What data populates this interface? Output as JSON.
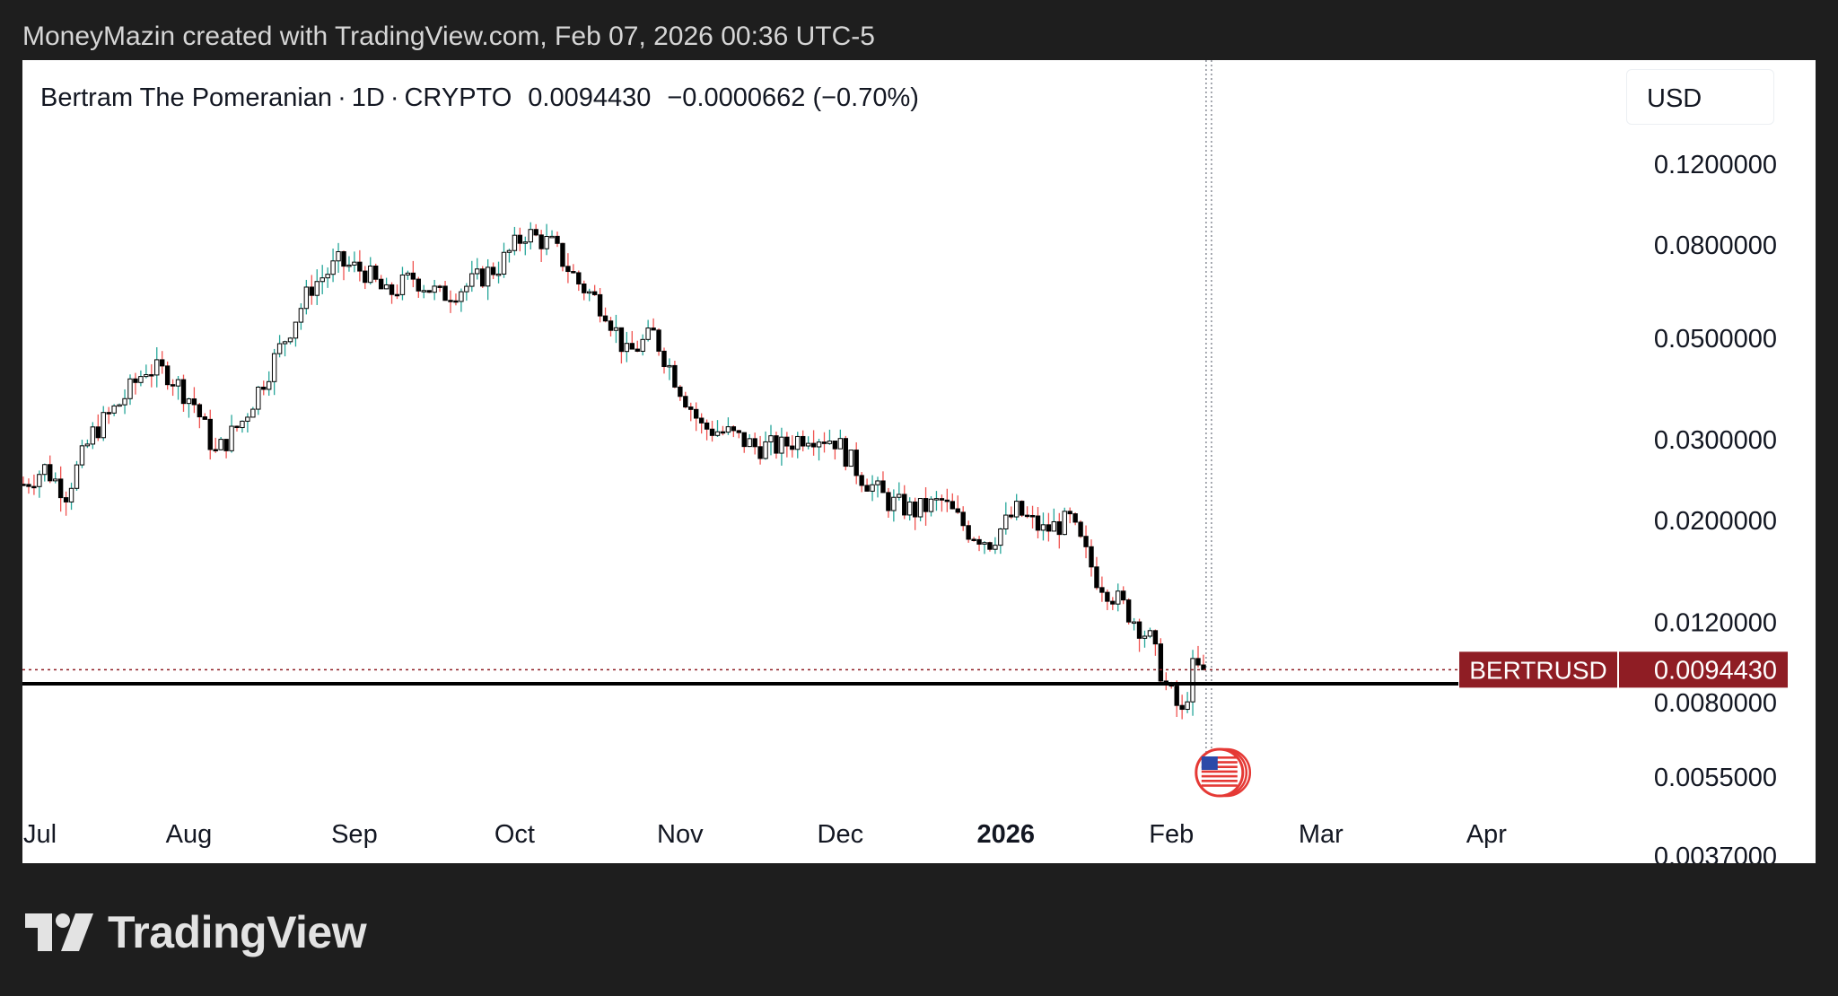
{
  "caption": "MoneyMazin created with TradingView.com, Feb 07, 2026 00:36 UTC-5",
  "currency_button": "USD",
  "legend": {
    "name": "Bertram The Pomeranian",
    "sep1": "·",
    "interval": "1D",
    "sep2": "·",
    "exchange": "CRYPTO",
    "last": "0.0094430",
    "change": "−0.0000662 (−0.70%)"
  },
  "symbol_tag": "BERTRUSD",
  "brand": "TradingView",
  "colors": {
    "up": "#26a69a",
    "down": "#ef5350",
    "candle_body": "#000000",
    "price_tag": "#8f1d24",
    "page_bg": "#1e1e1e",
    "panel_bg": "#ffffff"
  },
  "chart_data": {
    "type": "candlestick",
    "scale": "log",
    "price_axis": [
      "0.1200000",
      "0.0800000",
      "0.0500000",
      "0.0300000",
      "0.0200000",
      "0.0120000",
      "0.0080000",
      "0.0055000",
      "0.0037000"
    ],
    "time_axis": [
      {
        "label": "Jul",
        "date": "2025-07-01"
      },
      {
        "label": "Aug",
        "date": "2025-08-01"
      },
      {
        "label": "Sep",
        "date": "2025-09-01"
      },
      {
        "label": "Oct",
        "date": "2025-10-01"
      },
      {
        "label": "Nov",
        "date": "2025-11-01"
      },
      {
        "label": "Dec",
        "date": "2025-12-01"
      },
      {
        "label": "2026",
        "date": "2026-01-01",
        "bold": true
      },
      {
        "label": "Feb",
        "date": "2026-02-01"
      },
      {
        "label": "Mar",
        "date": "2026-03-01"
      },
      {
        "label": "Apr",
        "date": "2026-04-01"
      }
    ],
    "series_name": "BERTRUSD",
    "last_price": 0.009443,
    "horizontal_line": 0.0088,
    "cursor_date": "2026-02-08",
    "event_marker_date": "2026-02-10",
    "close_anchors": [
      [
        "2025-07-01",
        0.024
      ],
      [
        "2025-07-05",
        0.026
      ],
      [
        "2025-07-09",
        0.023
      ],
      [
        "2025-07-14",
        0.031
      ],
      [
        "2025-07-19",
        0.036
      ],
      [
        "2025-07-24",
        0.043
      ],
      [
        "2025-07-28",
        0.042
      ],
      [
        "2025-08-02",
        0.036
      ],
      [
        "2025-08-06",
        0.028
      ],
      [
        "2025-08-11",
        0.033
      ],
      [
        "2025-08-17",
        0.045
      ],
      [
        "2025-08-24",
        0.065
      ],
      [
        "2025-08-29",
        0.073
      ],
      [
        "2025-09-03",
        0.07
      ],
      [
        "2025-09-07",
        0.062
      ],
      [
        "2025-09-12",
        0.068
      ],
      [
        "2025-09-17",
        0.062
      ],
      [
        "2025-09-22",
        0.065
      ],
      [
        "2025-09-28",
        0.072
      ],
      [
        "2025-10-03",
        0.085
      ],
      [
        "2025-10-08",
        0.08
      ],
      [
        "2025-10-13",
        0.066
      ],
      [
        "2025-10-18",
        0.058
      ],
      [
        "2025-10-22",
        0.046
      ],
      [
        "2025-10-27",
        0.051
      ],
      [
        "2025-11-01",
        0.039
      ],
      [
        "2025-11-05",
        0.032
      ],
      [
        "2025-11-10",
        0.031
      ],
      [
        "2025-11-15",
        0.029
      ],
      [
        "2025-11-20",
        0.029
      ],
      [
        "2025-11-25",
        0.031
      ],
      [
        "2025-11-30",
        0.03
      ],
      [
        "2025-12-05",
        0.025
      ],
      [
        "2025-12-10",
        0.022
      ],
      [
        "2025-12-15",
        0.021
      ],
      [
        "2025-12-20",
        0.022
      ],
      [
        "2025-12-25",
        0.019
      ],
      [
        "2025-12-29",
        0.018
      ],
      [
        "2026-01-03",
        0.021
      ],
      [
        "2026-01-08",
        0.019
      ],
      [
        "2026-01-13",
        0.02
      ],
      [
        "2026-01-18",
        0.015
      ],
      [
        "2026-01-23",
        0.013
      ],
      [
        "2026-01-28",
        0.011
      ],
      [
        "2026-01-31",
        0.0087
      ],
      [
        "2026-02-03",
        0.0075
      ],
      [
        "2026-02-05",
        0.0095
      ],
      [
        "2026-02-07",
        0.009443
      ]
    ]
  }
}
